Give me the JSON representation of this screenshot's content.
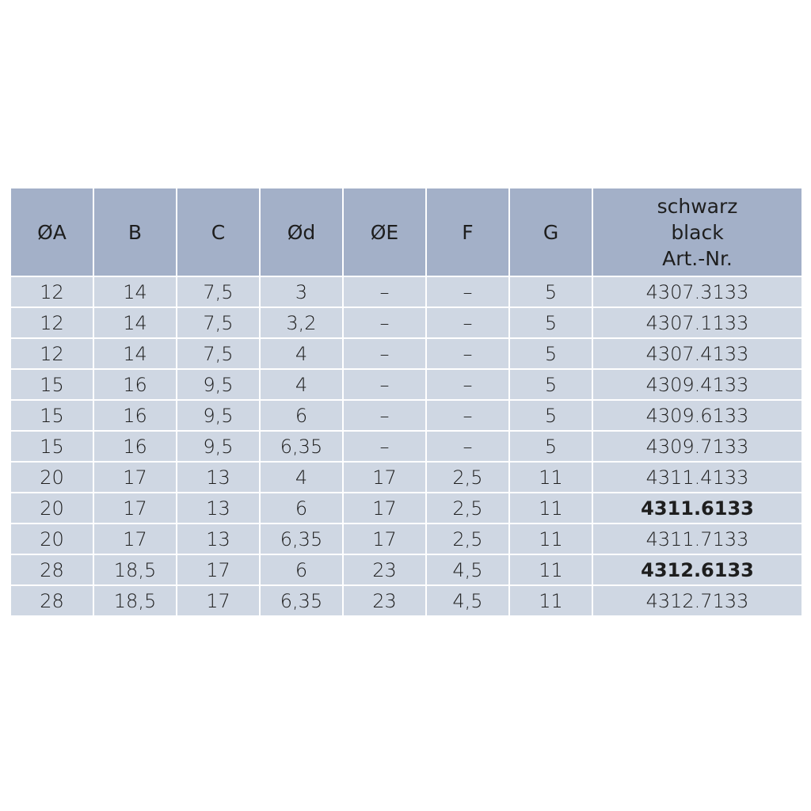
{
  "headers": [
    "ØA",
    "B",
    "C",
    "Ød",
    "ØE",
    "F",
    "G"
  ],
  "last_header": [
    "schwarz",
    "black",
    "Art.-Nr."
  ],
  "rows": [
    {
      "cells": [
        "12",
        "14",
        "7,5",
        "3",
        "–",
        "–",
        "5",
        "4307.3133"
      ],
      "bold": false
    },
    {
      "cells": [
        "12",
        "14",
        "7,5",
        "3,2",
        "–",
        "–",
        "5",
        "4307.1133"
      ],
      "bold": false
    },
    {
      "cells": [
        "12",
        "14",
        "7,5",
        "4",
        "–",
        "–",
        "5",
        "4307.4133"
      ],
      "bold": false
    },
    {
      "cells": [
        "15",
        "16",
        "9,5",
        "4",
        "–",
        "–",
        "5",
        "4309.4133"
      ],
      "bold": false
    },
    {
      "cells": [
        "15",
        "16",
        "9,5",
        "6",
        "–",
        "–",
        "5",
        "4309.6133"
      ],
      "bold": false
    },
    {
      "cells": [
        "15",
        "16",
        "9,5",
        "6,35",
        "–",
        "–",
        "5",
        "4309.7133"
      ],
      "bold": false
    },
    {
      "cells": [
        "20",
        "17",
        "13",
        "4",
        "17",
        "2,5",
        "11",
        "4311.4133"
      ],
      "bold": false
    },
    {
      "cells": [
        "20",
        "17",
        "13",
        "6",
        "17",
        "2,5",
        "11",
        "4311.6133"
      ],
      "bold": true
    },
    {
      "cells": [
        "20",
        "17",
        "13",
        "6,35",
        "17",
        "2,5",
        "11",
        "4311.7133"
      ],
      "bold": false
    },
    {
      "cells": [
        "28",
        "18,5",
        "17",
        "6",
        "23",
        "4,5",
        "11",
        "4312.6133"
      ],
      "bold": true
    },
    {
      "cells": [
        "28",
        "18,5",
        "17",
        "6,35",
        "23",
        "4,5",
        "11",
        "4312.7133"
      ],
      "bold": false
    }
  ],
  "colors": {
    "header_bg": "#a3b0c8",
    "row_bg": "#cfd7e3",
    "grid": "#ffffff",
    "text": "#1e1e1e"
  }
}
